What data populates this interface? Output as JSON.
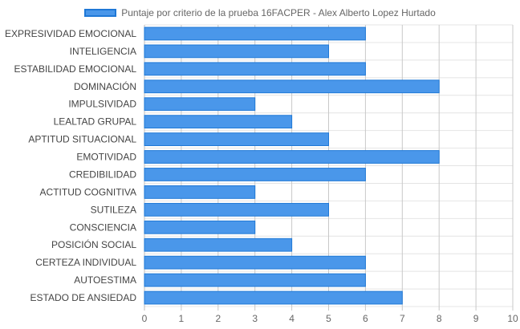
{
  "chart_data": {
    "type": "bar",
    "orientation": "horizontal",
    "categories": [
      "EXPRESIVIDAD EMOCIONAL",
      "INTELIGENCIA",
      "ESTABILIDAD EMOCIONAL",
      "DOMINACIÓN",
      "IMPULSIVIDAD",
      "LEALTAD GRUPAL",
      "APTITUD SITUACIONAL",
      "EMOTIVIDAD",
      "CREDIBILIDAD",
      "ACTITUD COGNITIVA",
      "SUTILEZA",
      "CONSCIENCIA",
      "POSICIÓN SOCIAL",
      "CERTEZA INDIVIDUAL",
      "AUTOESTIMA",
      "ESTADO DE ANSIEDAD"
    ],
    "series": [
      {
        "name": "Puntaje por criterio de la prueba 16FACPER - Alex Alberto Lopez Hurtado",
        "values": [
          6,
          5,
          6,
          8,
          3,
          4,
          5,
          8,
          6,
          3,
          5,
          3,
          4,
          6,
          6,
          7
        ],
        "color": "#4a97ea",
        "border_color": "#1f78d6"
      }
    ],
    "xlim": [
      0,
      10
    ],
    "xticks": [
      "0",
      "1",
      "2",
      "3",
      "4",
      "5",
      "6",
      "7",
      "8",
      "9",
      "10"
    ],
    "grid": true,
    "legend_position": "top"
  }
}
